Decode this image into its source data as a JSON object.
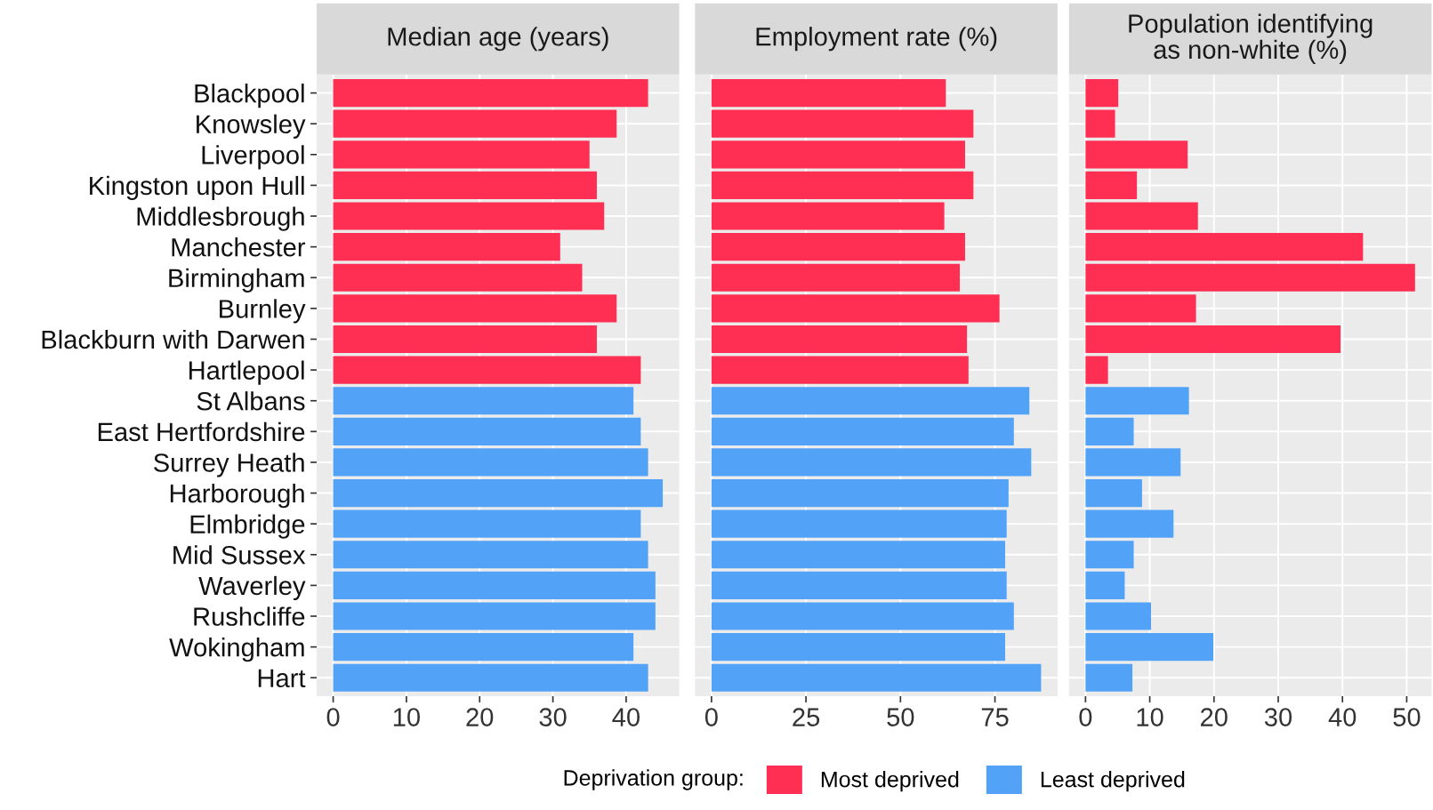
{
  "chart_data": [
    {
      "type": "bar",
      "orientation": "horizontal",
      "title": "Median age (years)",
      "categories": [
        "Blackpool",
        "Knowsley",
        "Liverpool",
        "Kingston upon Hull",
        "Middlesbrough",
        "Manchester",
        "Birmingham",
        "Burnley",
        "Blackburn with Darwen",
        "Hartlepool",
        "St Albans",
        "East Hertfordshire",
        "Surrey Heath",
        "Harborough",
        "Elmbridge",
        "Mid Sussex",
        "Waverley",
        "Rushcliffe",
        "Wokingham",
        "Hart"
      ],
      "series": [
        {
          "name": "Most deprived",
          "color": "#fe2f52",
          "values": [
            43,
            38.7,
            35,
            36,
            37,
            31,
            34,
            38.7,
            36,
            42,
            null,
            null,
            null,
            null,
            null,
            null,
            null,
            null,
            null,
            null
          ]
        },
        {
          "name": "Least deprived",
          "color": "#52a3f8",
          "values": [
            null,
            null,
            null,
            null,
            null,
            null,
            null,
            null,
            null,
            null,
            41,
            42,
            43,
            45,
            42,
            43,
            44,
            44,
            41,
            43
          ]
        }
      ],
      "xlim": [
        -2.25,
        47.25
      ],
      "xticks": [
        0,
        10,
        20,
        30,
        40
      ],
      "grid": true,
      "legend": "bottom",
      "legend_title": "Deprivation group:"
    },
    {
      "type": "bar",
      "orientation": "horizontal",
      "title": "Employment rate (%)",
      "categories": [
        null,
        null,
        null,
        null,
        null,
        null,
        null,
        null,
        null,
        null,
        null,
        null,
        null,
        null,
        null,
        null,
        null,
        null,
        null,
        null
      ],
      "series": [
        {
          "color": "#fe2f52",
          "values": [
            62,
            69.3,
            67.1,
            69.3,
            61.6,
            67.1,
            65.7,
            76.2,
            67.6,
            68,
            null,
            null,
            null,
            null,
            null,
            null,
            null,
            null,
            null,
            null
          ]
        },
        {
          "color": "#52a3f8",
          "values": [
            null,
            null,
            null,
            null,
            null,
            null,
            null,
            null,
            null,
            null,
            84.1,
            80,
            84.6,
            78.6,
            78.1,
            77.7,
            78.1,
            80,
            77.7,
            87.2
          ]
        }
      ],
      "xlim": [
        -4.36,
        91.56
      ],
      "xticks": [
        0,
        25,
        50,
        75
      ],
      "grid": true,
      "tick_labels": "x"
    },
    {
      "type": "bar",
      "orientation": "horizontal",
      "title": "Population identifying\nas non-white (%)",
      "categories": [
        null,
        null,
        null,
        null,
        null,
        null,
        null,
        null,
        null,
        null,
        null,
        null,
        null,
        null,
        null,
        null,
        null,
        null,
        null,
        null
      ],
      "series": [
        {
          "color": "#fe2f52",
          "values": [
            5.1,
            4.6,
            15.9,
            8,
            17.5,
            43.2,
            51.3,
            17.2,
            39.7,
            3.5,
            null,
            null,
            null,
            null,
            null,
            null,
            null,
            null,
            null,
            null
          ]
        },
        {
          "color": "#52a3f8",
          "values": [
            null,
            null,
            null,
            null,
            null,
            null,
            null,
            null,
            null,
            null,
            16.1,
            7.5,
            14.8,
            8.8,
            13.7,
            7.5,
            6.1,
            10.2,
            19.9,
            7.3
          ]
        }
      ],
      "xlim": [
        -2.57,
        53.87
      ],
      "xticks": [
        0,
        10,
        20,
        30,
        40,
        50
      ],
      "grid": true,
      "tick_labels": "x"
    }
  ]
}
